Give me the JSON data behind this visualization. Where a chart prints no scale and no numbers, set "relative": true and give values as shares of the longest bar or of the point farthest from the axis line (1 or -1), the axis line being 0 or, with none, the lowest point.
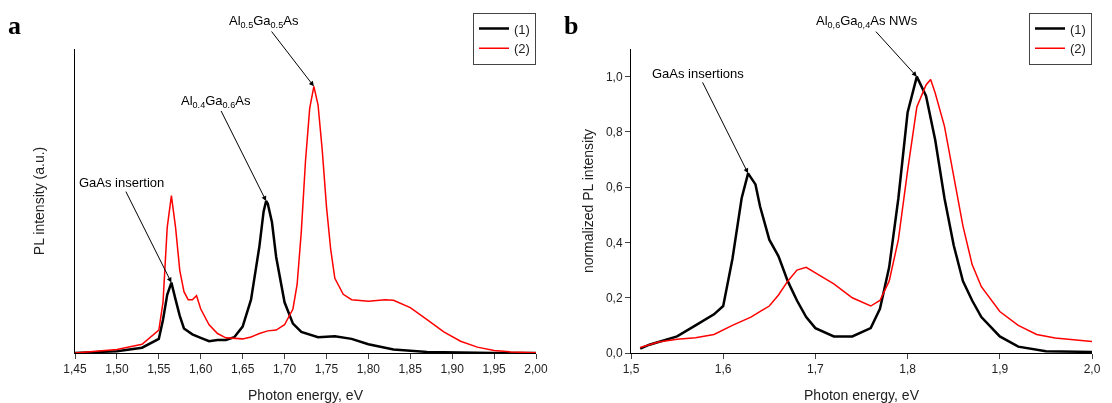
{
  "chart_data": [
    {
      "type": "line",
      "title": "a",
      "xlabel": "Photon energy, eV",
      "ylabel": "PL intensity (a.u.)",
      "relative": true,
      "grid": false,
      "legend": "top right",
      "marker": "none",
      "line_style": "solid",
      "xlim": [
        1.45,
        2.0
      ],
      "xticks": [
        {
          "value": 1.45,
          "label": "1,45"
        },
        {
          "value": 1.5,
          "label": "1,50"
        },
        {
          "value": 1.55,
          "label": "1,55"
        },
        {
          "value": 1.6,
          "label": "1,60"
        },
        {
          "value": 1.65,
          "label": "1,65"
        },
        {
          "value": 1.7,
          "label": "1,70"
        },
        {
          "value": 1.75,
          "label": "1,75"
        },
        {
          "value": 1.8,
          "label": "1,80"
        },
        {
          "value": 1.85,
          "label": "1,85"
        },
        {
          "value": 1.9,
          "label": "1,90"
        },
        {
          "value": 1.95,
          "label": "1,95"
        },
        {
          "value": 2.0,
          "label": "2,00"
        }
      ],
      "series": [
        {
          "name": "(1)",
          "color": "#000000",
          "x": [
            1.45,
            1.5,
            1.53,
            1.55,
            1.555,
            1.56,
            1.565,
            1.57,
            1.575,
            1.58,
            1.59,
            1.6,
            1.61,
            1.62,
            1.63,
            1.64,
            1.65,
            1.66,
            1.67,
            1.675,
            1.678,
            1.68,
            1.685,
            1.69,
            1.7,
            1.71,
            1.72,
            1.74,
            1.76,
            1.78,
            1.8,
            1.83,
            1.87,
            1.95,
            2.0
          ],
          "values": [
            0,
            0.007,
            0.02,
            0.053,
            0.125,
            0.218,
            0.264,
            0.2,
            0.139,
            0.092,
            0.07,
            0.057,
            0.044,
            0.049,
            0.049,
            0.059,
            0.099,
            0.2,
            0.4,
            0.53,
            0.57,
            0.56,
            0.49,
            0.36,
            0.19,
            0.11,
            0.079,
            0.059,
            0.063,
            0.053,
            0.033,
            0.013,
            0.004,
            0,
            0
          ]
        },
        {
          "name": "(2)",
          "color": "#ff0000",
          "x": [
            1.45,
            1.5,
            1.53,
            1.55,
            1.555,
            1.56,
            1.565,
            1.57,
            1.575,
            1.58,
            1.585,
            1.59,
            1.595,
            1.6,
            1.61,
            1.62,
            1.63,
            1.65,
            1.66,
            1.67,
            1.68,
            1.69,
            1.7,
            1.71,
            1.715,
            1.72,
            1.725,
            1.73,
            1.735,
            1.74,
            1.745,
            1.75,
            1.755,
            1.76,
            1.77,
            1.78,
            1.8,
            1.82,
            1.83,
            1.85,
            1.87,
            1.89,
            1.91,
            1.93,
            1.95,
            1.97,
            2.0
          ],
          "values": [
            0,
            0.013,
            0.033,
            0.086,
            0.19,
            0.47,
            0.59,
            0.47,
            0.31,
            0.23,
            0.2,
            0.2,
            0.215,
            0.165,
            0.106,
            0.073,
            0.057,
            0.053,
            0.06,
            0.073,
            0.083,
            0.086,
            0.106,
            0.165,
            0.257,
            0.455,
            0.72,
            0.917,
            1,
            0.93,
            0.76,
            0.55,
            0.39,
            0.28,
            0.22,
            0.2,
            0.194,
            0.2,
            0.198,
            0.17,
            0.125,
            0.079,
            0.044,
            0.022,
            0.009,
            0.004,
            0.001
          ]
        }
      ],
      "annotations": [
        {
          "text": "GaAs insertion",
          "x": 1.565,
          "y": 0.264
        },
        {
          "text": "Al$_{0.4}$Ga$_{0.6}$As",
          "x": 1.678,
          "y": 0.57
        },
        {
          "text": "Al$_{0.5}$Ga$_{0.5}$As",
          "x": 1.735,
          "y": 1
        }
      ]
    },
    {
      "type": "line",
      "title": "b",
      "xlabel": "Photon energy, eV",
      "ylabel": "normalized PL intensity",
      "grid": false,
      "legend": "top right",
      "marker": "none",
      "line_style": "solid",
      "xlim": [
        1.5,
        2.0
      ],
      "xticks": [
        {
          "value": 1.5,
          "label": "1,5"
        },
        {
          "value": 1.6,
          "label": "1,6"
        },
        {
          "value": 1.7,
          "label": "1,7"
        },
        {
          "value": 1.8,
          "label": "1,8"
        },
        {
          "value": 1.9,
          "label": "1,9"
        },
        {
          "value": 2.0,
          "label": "2,0"
        }
      ],
      "ylim": [
        0,
        1.1
      ],
      "yticks": [
        {
          "value": 0,
          "label": "0,0"
        },
        {
          "value": 0.2,
          "label": "0,2"
        },
        {
          "value": 0.4,
          "label": "0,4"
        },
        {
          "value": 0.6,
          "label": "0,6"
        },
        {
          "value": 0.8,
          "label": "0,8"
        },
        {
          "value": 1.0,
          "label": "1,0"
        }
      ],
      "series": [
        {
          "name": "(1)",
          "color": "#000000",
          "x": [
            1.51,
            1.52,
            1.55,
            1.57,
            1.59,
            1.6,
            1.61,
            1.62,
            1.627,
            1.635,
            1.64,
            1.65,
            1.66,
            1.67,
            1.68,
            1.69,
            1.7,
            1.72,
            1.74,
            1.76,
            1.77,
            1.78,
            1.79,
            1.8,
            1.81,
            1.82,
            1.83,
            1.84,
            1.85,
            1.86,
            1.87,
            1.88,
            1.9,
            1.92,
            1.95,
            2.0
          ],
          "values": [
            0.016,
            0.03,
            0.06,
            0.1,
            0.14,
            0.17,
            0.34,
            0.56,
            0.65,
            0.61,
            0.53,
            0.41,
            0.35,
            0.26,
            0.19,
            0.13,
            0.09,
            0.06,
            0.06,
            0.09,
            0.16,
            0.31,
            0.56,
            0.87,
            1.0,
            0.93,
            0.77,
            0.56,
            0.39,
            0.26,
            0.19,
            0.13,
            0.06,
            0.023,
            0.006,
            0.004
          ]
        },
        {
          "name": "(2)",
          "color": "#ff0000",
          "x": [
            1.51,
            1.53,
            1.55,
            1.57,
            1.59,
            1.61,
            1.63,
            1.65,
            1.66,
            1.67,
            1.68,
            1.69,
            1.7,
            1.71,
            1.72,
            1.74,
            1.76,
            1.77,
            1.78,
            1.79,
            1.8,
            1.81,
            1.82,
            1.825,
            1.83,
            1.84,
            1.85,
            1.86,
            1.87,
            1.88,
            1.9,
            1.92,
            1.94,
            1.96,
            2.0
          ],
          "values": [
            0.02,
            0.04,
            0.05,
            0.055,
            0.067,
            0.1,
            0.13,
            0.17,
            0.21,
            0.26,
            0.3,
            0.31,
            0.29,
            0.27,
            0.25,
            0.2,
            0.17,
            0.19,
            0.26,
            0.41,
            0.66,
            0.89,
            0.97,
            0.99,
            0.94,
            0.82,
            0.64,
            0.46,
            0.32,
            0.24,
            0.15,
            0.1,
            0.067,
            0.054,
            0.042
          ]
        }
      ],
      "annotations": [
        {
          "text": "GaAs insertions",
          "x": 1.627,
          "y": 0.65
        },
        {
          "text": "Al$_{0,6}$Ga$_{0,4}$As NWs",
          "x": 1.81,
          "y": 1.0
        }
      ]
    }
  ]
}
